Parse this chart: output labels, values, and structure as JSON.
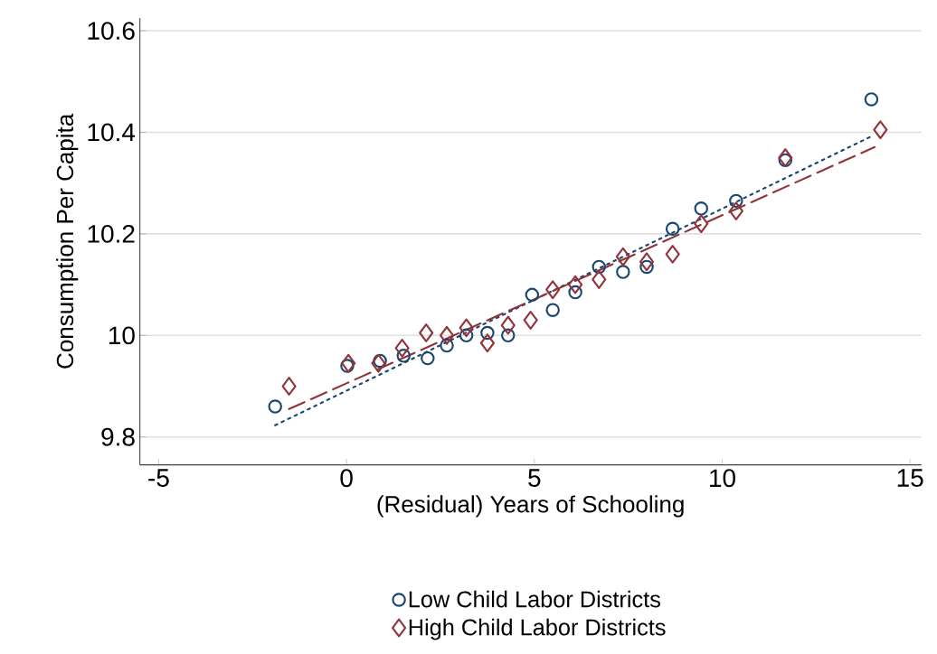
{
  "chart_data": {
    "type": "scatter",
    "xlabel": "(Residual) Years of Schooling",
    "ylabel": "Consumption Per Capita",
    "xlim": [
      -5.5,
      15.3
    ],
    "ylim": [
      9.745,
      10.625
    ],
    "xticks": [
      -5,
      0,
      5,
      10,
      15
    ],
    "yticks": [
      9.8,
      10,
      10.2,
      10.4,
      10.6
    ],
    "grid": "y",
    "legend": "bottom",
    "series": [
      {
        "name": "Low Child Labor Districts",
        "color": "#1a476f",
        "marker": "circle",
        "x": [
          -1.9,
          0.02,
          0.89,
          1.52,
          2.16,
          2.67,
          3.19,
          3.75,
          4.3,
          4.94,
          5.49,
          6.09,
          6.72,
          7.36,
          7.99,
          8.68,
          9.44,
          10.37,
          11.68,
          13.97
        ],
        "values": [
          9.86,
          9.94,
          9.95,
          9.96,
          9.955,
          9.98,
          10.0,
          10.005,
          10.0,
          10.08,
          10.05,
          10.085,
          10.135,
          10.125,
          10.135,
          10.21,
          10.25,
          10.265,
          10.345,
          10.465
        ]
      },
      {
        "name": "High Child Labor Districts",
        "color": "#90353b",
        "marker": "diamond",
        "x": [
          -1.53,
          0.05,
          0.85,
          1.48,
          2.12,
          2.67,
          3.19,
          3.75,
          4.3,
          4.9,
          5.49,
          6.09,
          6.72,
          7.36,
          7.99,
          8.68,
          9.44,
          10.37,
          11.68,
          14.21
        ],
        "values": [
          9.9,
          9.945,
          9.945,
          9.975,
          10.005,
          10.0,
          10.015,
          9.985,
          10.02,
          10.03,
          10.09,
          10.1,
          10.11,
          10.155,
          10.145,
          10.16,
          10.22,
          10.245,
          10.35,
          10.405
        ]
      },
      {
        "type": "line",
        "color": "#1a476f",
        "line_style": "dotted",
        "marker": "none",
        "x": [
          -1.9,
          13.97
        ],
        "values": [
          9.823,
          10.392
        ]
      },
      {
        "type": "line",
        "color": "#90353b",
        "line_style": "dashed",
        "marker": "none",
        "x": [
          -1.53,
          14.06
        ],
        "values": [
          9.855,
          10.371
        ]
      }
    ]
  }
}
